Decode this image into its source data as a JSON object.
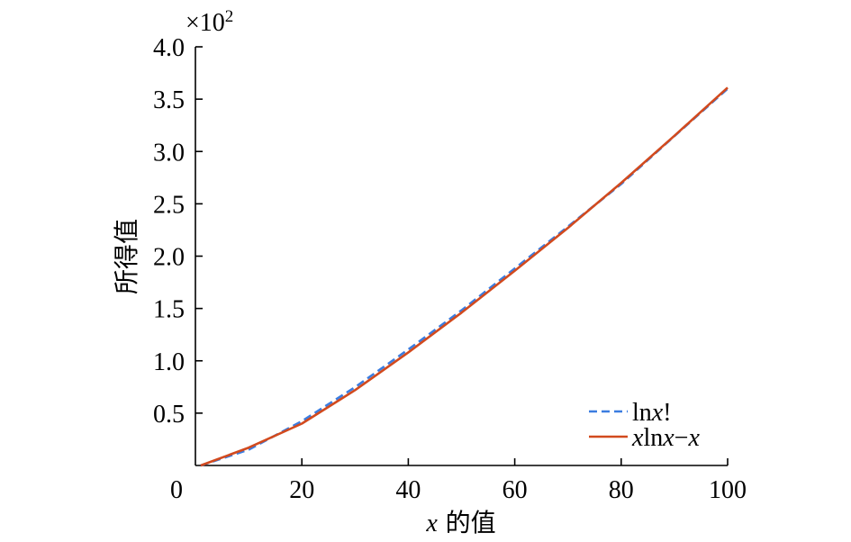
{
  "chart_data": {
    "type": "line",
    "xlabel_var": "x",
    "xlabel_suffix": " 的值",
    "ylabel": "所得值",
    "y_multiplier": "×10",
    "y_multiplier_exp": "2",
    "xlim": [
      0,
      100
    ],
    "ylim": [
      0,
      4.0
    ],
    "x_ticks": [
      {
        "value": 0,
        "label": "0"
      },
      {
        "value": 20,
        "label": "20"
      },
      {
        "value": 40,
        "label": "40"
      },
      {
        "value": 60,
        "label": "60"
      },
      {
        "value": 80,
        "label": "80"
      },
      {
        "value": 100,
        "label": "100"
      }
    ],
    "y_ticks": [
      {
        "value": 0.5,
        "label": "0.5"
      },
      {
        "value": 1.0,
        "label": "1.0"
      },
      {
        "value": 1.5,
        "label": "1.5"
      },
      {
        "value": 2.0,
        "label": "2.0"
      },
      {
        "value": 2.5,
        "label": "2.5"
      },
      {
        "value": 3.0,
        "label": "3.0"
      },
      {
        "value": 3.5,
        "label": "3.5"
      },
      {
        "value": 4.0,
        "label": "4.0"
      }
    ],
    "grid": false,
    "legend_position": "bottom-right",
    "series": [
      {
        "name": "lnx!",
        "style": "dashed",
        "color": "#3b7de0",
        "x": [
          1,
          10,
          20,
          30,
          40,
          50,
          60,
          70,
          80,
          90,
          100
        ],
        "y": [
          0.0,
          0.151,
          0.423,
          0.748,
          1.108,
          1.482,
          1.882,
          2.282,
          2.689,
          3.147,
          3.6
        ]
      },
      {
        "name": "xlnx−x",
        "style": "solid",
        "color": "#d24a1e",
        "x": [
          1,
          10,
          20,
          30,
          40,
          50,
          60,
          70,
          80,
          90,
          100
        ],
        "y": [
          0.0,
          0.17,
          0.4,
          0.72,
          1.08,
          1.46,
          1.86,
          2.27,
          2.7,
          3.15,
          3.61
        ]
      }
    ]
  }
}
